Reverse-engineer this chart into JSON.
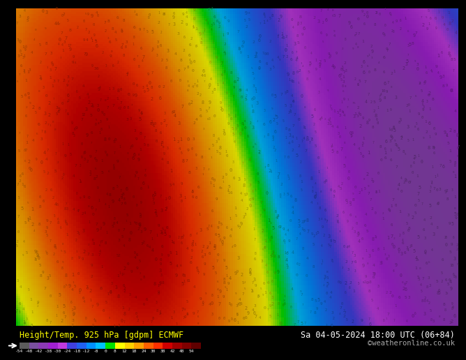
{
  "title_left": "Height/Temp. 925 hPa [gdpm] ECMWF",
  "title_right": "Sa 04-05-2024 18:00 UTC (06+84)",
  "credit": "©weatheronline.co.uk",
  "colorbar_values": [
    -54,
    -48,
    -42,
    -38,
    -30,
    -24,
    -18,
    -12,
    -8,
    0,
    8,
    12,
    18,
    24,
    30,
    38,
    42,
    48,
    54
  ],
  "colorbar_tick_labels": [
    "-54",
    "-48",
    "-42",
    "-38",
    "-30",
    "-24",
    "-18",
    "-12",
    "-8",
    "0",
    "8",
    "12",
    "18",
    "24",
    "30",
    "38",
    "42",
    "48",
    "54"
  ],
  "colorbar_colors": [
    "#5c5c5c",
    "#7a4fa0",
    "#8b3ab5",
    "#a020d0",
    "#c03adf",
    "#4040e0",
    "#2060f0",
    "#0090ff",
    "#00c0ff",
    "#00e000",
    "#ffff00",
    "#ffd000",
    "#ffa000",
    "#ff6000",
    "#ff3000",
    "#d00000",
    "#a00000",
    "#800000",
    "#600000"
  ],
  "bg_color": "#000000",
  "map_bg_top": "#c8a020",
  "map_bg_mid": "#c89010",
  "map_bg_bot": "#c87800",
  "footer_bg": "#000000",
  "footer_text_color": "#ffffff",
  "title_bg": "#000000",
  "title_text_color": "#ffff00",
  "fig_width": 6.34,
  "fig_height": 4.9
}
